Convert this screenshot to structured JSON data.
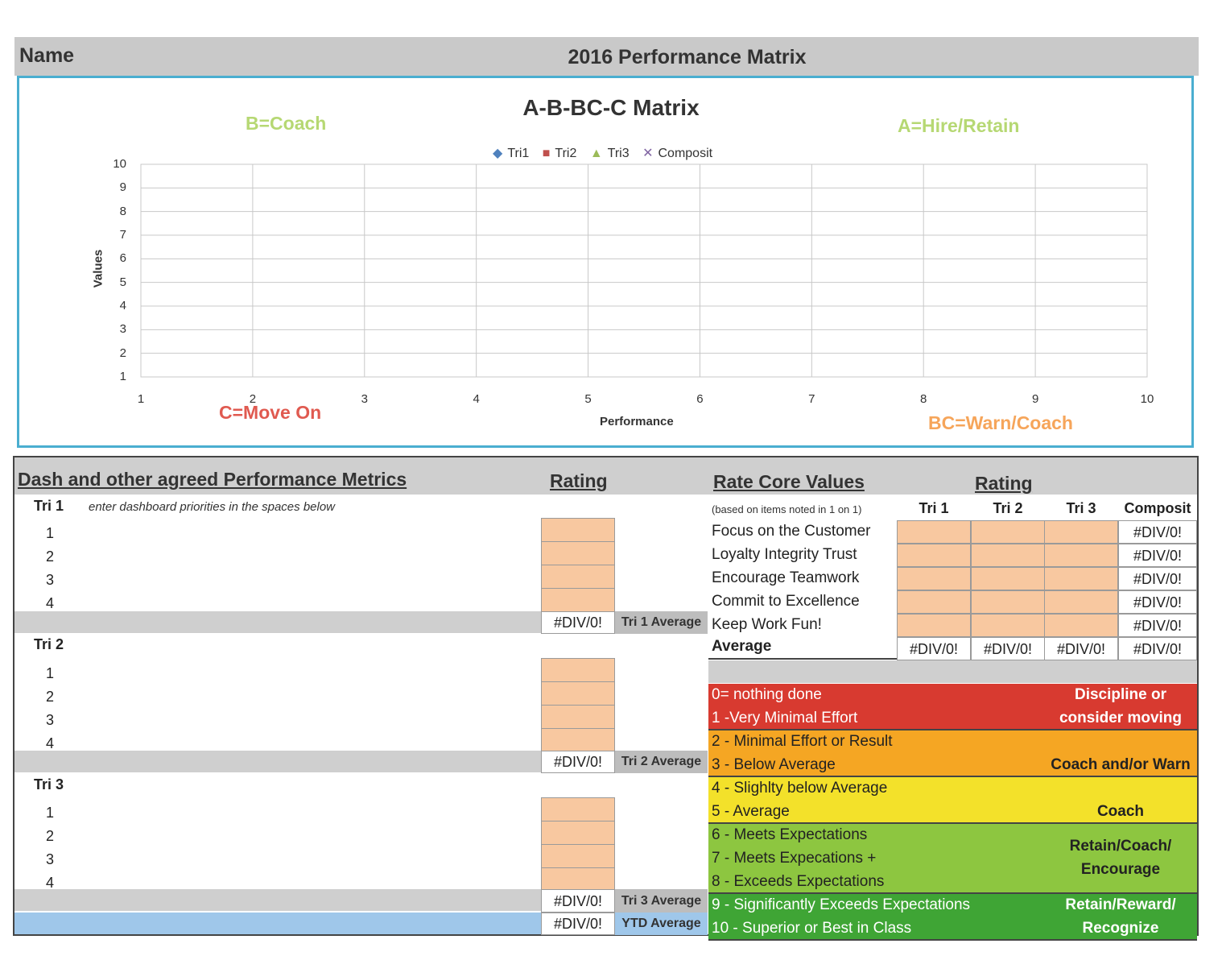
{
  "header": {
    "name_label": "Name",
    "title": "2016 Performance Matrix"
  },
  "chart": {
    "title": "A-B-BC-C Matrix",
    "quadrants": {
      "top_left": "B=Coach",
      "top_right": "A=Hire/Retain",
      "bottom_left": "C=Move On",
      "bottom_right": "BC=Warn/Coach"
    },
    "colors": {
      "b": "#b6d873",
      "a": "#b6d873",
      "c": "#e05a50",
      "bc": "#f6a55a",
      "tri1": "#4f81bd",
      "tri2": "#c0504d",
      "tri3": "#9bbb59",
      "composit": "#8064a2"
    }
  },
  "chart_data": {
    "type": "scatter",
    "title": "A-B-BC-C Matrix",
    "xlabel": "Performance",
    "ylabel": "Values",
    "xlim": [
      1,
      10
    ],
    "ylim": [
      1,
      10
    ],
    "x_ticks": [
      "1",
      "2",
      "3",
      "4",
      "5",
      "6",
      "7",
      "8",
      "9",
      "10"
    ],
    "y_ticks": [
      "10",
      "9",
      "8",
      "7",
      "6",
      "5",
      "4",
      "3",
      "2",
      "1"
    ],
    "grid": true,
    "legend_position": "top",
    "series": [
      {
        "name": "Tri1",
        "marker": "◆",
        "values": []
      },
      {
        "name": "Tri2",
        "marker": "■",
        "values": []
      },
      {
        "name": "Tri3",
        "marker": "▲",
        "values": []
      },
      {
        "name": "Composit",
        "marker": "✕",
        "values": []
      }
    ]
  },
  "metrics": {
    "heading": "Dash and other agreed Performance Metrics",
    "rating_heading": "Rating",
    "tri1_label": "Tri 1",
    "tri1_hint": "enter dashboard priorities in the spaces below",
    "tri2_label": "Tri 2",
    "tri3_label": "Tri 3",
    "rows": [
      "1",
      "2",
      "3",
      "4"
    ],
    "tri1_avg_value": "#DIV/0!",
    "tri1_avg_label": "Tri 1 Average",
    "tri2_avg_value": "#DIV/0!",
    "tri2_avg_label": "Tri 2 Average",
    "tri3_avg_value": "#DIV/0!",
    "tri3_avg_label": "Tri 3 Average",
    "ytd_value": "#DIV/0!",
    "ytd_label": "YTD Average"
  },
  "core_values": {
    "heading": "Rate Core Values",
    "rating_heading": "Rating",
    "note": "(based on items noted in 1 on 1)",
    "cols": [
      "Tri 1",
      "Tri 2",
      "Tri 3",
      "Composit"
    ],
    "items": [
      "Focus on the Customer",
      "Loyalty Integrity Trust",
      "Encourage Teamwork",
      "Commit to Excellence",
      "Keep Work Fun!"
    ],
    "composit_values": [
      "#DIV/0!",
      "#DIV/0!",
      "#DIV/0!",
      "#DIV/0!",
      "#DIV/0!"
    ],
    "average_label": "Average",
    "average_values": [
      "#DIV/0!",
      "#DIV/0!",
      "#DIV/0!",
      "#DIV/0!"
    ]
  },
  "scale": {
    "bands": [
      {
        "color": "#d83a30",
        "lines": [
          "0= nothing done",
          "1 -Very Minimal Effort"
        ],
        "action": [
          "Discipline or",
          "consider moving"
        ]
      },
      {
        "color": "#f5a623",
        "lines": [
          "2 - Minimal Effort or Result",
          "3 - Below Average"
        ],
        "action": [
          "",
          "Coach and/or Warn"
        ]
      },
      {
        "color": "#f3e12a",
        "lines": [
          "4 - Slighlty below Average",
          "5 - Average"
        ],
        "action": [
          "",
          "Coach"
        ]
      },
      {
        "color": "#8dc640",
        "lines": [
          "6 - Meets Expectations",
          "7 - Meets Expecations +",
          "8 - Exceeds Expectations"
        ],
        "action": [
          "Retain/Coach/",
          "Encourage"
        ]
      },
      {
        "color": "#3fa535",
        "lines": [
          "9 - Significantly Exceeds Expectations",
          "10 - Superior or Best in Class"
        ],
        "action": [
          "Retain/Reward/",
          "Recognize"
        ]
      }
    ]
  }
}
